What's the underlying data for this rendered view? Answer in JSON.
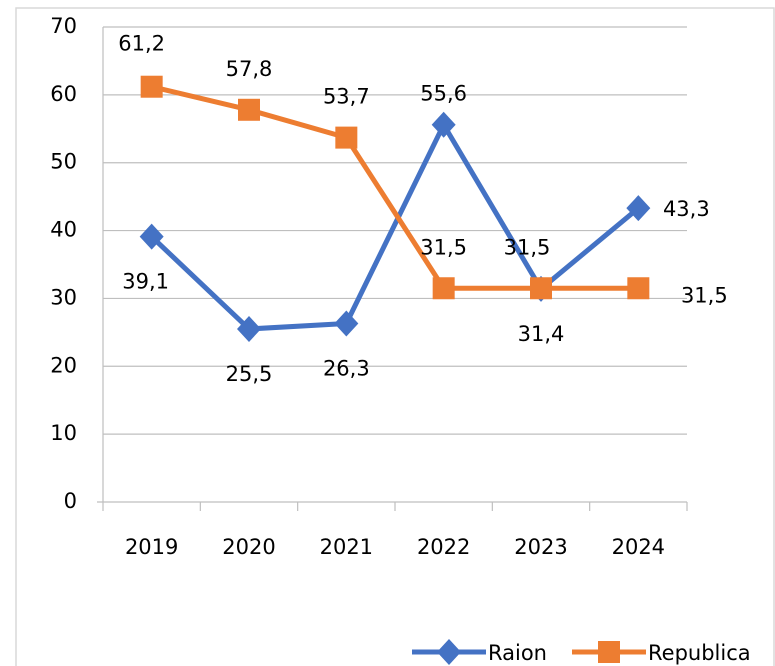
{
  "chart_data": {
    "type": "line",
    "categories": [
      "2019",
      "2020",
      "2021",
      "2022",
      "2023",
      "2024"
    ],
    "series": [
      {
        "name": "Raion",
        "color": "#4472c4",
        "marker": "diamond",
        "values": [
          39.1,
          25.5,
          26.3,
          55.6,
          31.4,
          43.3
        ],
        "value_labels": [
          "39,1",
          "25,5",
          "26,3",
          "55,6",
          "31,4",
          "43,3"
        ]
      },
      {
        "name": "Republica",
        "color": "#ed7d31",
        "marker": "square",
        "values": [
          61.2,
          57.8,
          53.7,
          31.5,
          31.5,
          31.5
        ],
        "value_labels": [
          "61,2",
          "57,8",
          "53,7",
          "31,5",
          "31,5",
          "31,5"
        ]
      }
    ],
    "ylim": [
      0,
      70
    ],
    "yticks": [
      0,
      10,
      20,
      30,
      40,
      50,
      60,
      70
    ],
    "grid": true,
    "legend": "bottom"
  }
}
